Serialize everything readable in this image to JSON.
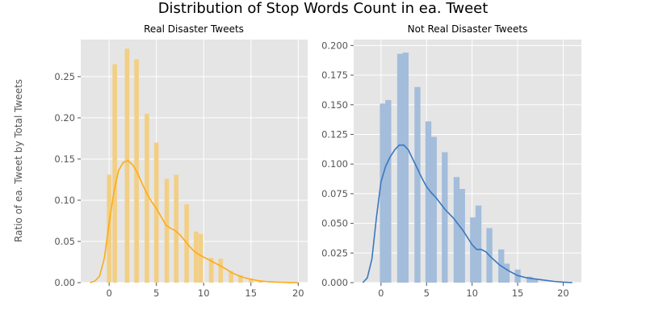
{
  "figure": {
    "suptitle": "Distribution of Stop Words Count in ea. Tweet",
    "shared_ylabel": "Ratio of ea. Tweet by Total Tweets"
  },
  "chart_data": [
    {
      "type": "bar",
      "subtype": "histogram_with_kde",
      "title": "Real Disaster Tweets",
      "xlabel": "",
      "ylabel": "Ratio of ea. Tweet by Total Tweets",
      "xlim": [
        -3,
        21
      ],
      "ylim": [
        0,
        0.295
      ],
      "xticks": [
        0,
        5,
        10,
        15,
        20
      ],
      "yticks": [
        0.0,
        0.05,
        0.1,
        0.15,
        0.2,
        0.25
      ],
      "ytick_labels": [
        "0.00",
        "0.05",
        "0.10",
        "0.15",
        "0.20",
        "0.25"
      ],
      "bar_color": "#f2cf84",
      "line_color": "#ffaa17",
      "background": "#e5e5e5",
      "grid": true,
      "bin_width": 0.48,
      "bars": [
        {
          "x": 0.0,
          "value": 0.131
        },
        {
          "x": 0.6,
          "value": 0.265
        },
        {
          "x": 1.9,
          "value": 0.284
        },
        {
          "x": 2.9,
          "value": 0.271
        },
        {
          "x": 4.0,
          "value": 0.205
        },
        {
          "x": 5.0,
          "value": 0.17
        },
        {
          "x": 6.1,
          "value": 0.126
        },
        {
          "x": 7.1,
          "value": 0.131
        },
        {
          "x": 8.2,
          "value": 0.095
        },
        {
          "x": 9.2,
          "value": 0.062
        },
        {
          "x": 9.7,
          "value": 0.059
        },
        {
          "x": 10.8,
          "value": 0.03
        },
        {
          "x": 11.8,
          "value": 0.029
        },
        {
          "x": 12.9,
          "value": 0.014
        },
        {
          "x": 13.9,
          "value": 0.009
        },
        {
          "x": 15.0,
          "value": 0.005
        },
        {
          "x": 16.0,
          "value": 0.003
        },
        {
          "x": 17.1,
          "value": 0.002
        }
      ],
      "kde": {
        "x": [
          -2.0,
          -1.5,
          -1.0,
          -0.5,
          0.0,
          0.5,
          1.0,
          1.5,
          2.0,
          2.5,
          3.0,
          3.5,
          4.0,
          4.5,
          5.0,
          5.5,
          6.0,
          6.5,
          7.0,
          7.5,
          8.0,
          8.5,
          9.0,
          9.5,
          10.0,
          11.0,
          12.0,
          13.0,
          14.0,
          15.0,
          16.0,
          17.0,
          18.0,
          19.0,
          20.0
        ],
        "y": [
          0.0,
          0.002,
          0.008,
          0.03,
          0.072,
          0.11,
          0.136,
          0.146,
          0.148,
          0.143,
          0.133,
          0.12,
          0.108,
          0.098,
          0.09,
          0.08,
          0.07,
          0.066,
          0.063,
          0.058,
          0.051,
          0.044,
          0.038,
          0.034,
          0.031,
          0.025,
          0.019,
          0.012,
          0.007,
          0.004,
          0.002,
          0.001,
          0.0005,
          0.0002,
          0.0
        ]
      }
    },
    {
      "type": "bar",
      "subtype": "histogram_with_kde",
      "title": "Not Real Disaster Tweets",
      "xlabel": "",
      "ylabel": "",
      "xlim": [
        -3,
        22
      ],
      "ylim": [
        0,
        0.205
      ],
      "xticks": [
        0,
        5,
        10,
        15,
        20
      ],
      "yticks": [
        0.0,
        0.025,
        0.05,
        0.075,
        0.1,
        0.125,
        0.15,
        0.175,
        0.2
      ],
      "ytick_labels": [
        "0.000",
        "0.025",
        "0.050",
        "0.075",
        "0.100",
        "0.125",
        "0.150",
        "0.175",
        "0.200"
      ],
      "bar_color": "#a3bddb",
      "line_color": "#3a77bf",
      "background": "#e5e5e5",
      "grid": true,
      "bin_width": 0.65,
      "bars": [
        {
          "x": 0.2,
          "value": 0.151
        },
        {
          "x": 0.8,
          "value": 0.154
        },
        {
          "x": 2.1,
          "value": 0.193
        },
        {
          "x": 2.7,
          "value": 0.194
        },
        {
          "x": 4.0,
          "value": 0.165
        },
        {
          "x": 5.2,
          "value": 0.136
        },
        {
          "x": 5.8,
          "value": 0.123
        },
        {
          "x": 7.0,
          "value": 0.11
        },
        {
          "x": 8.3,
          "value": 0.089
        },
        {
          "x": 8.9,
          "value": 0.079
        },
        {
          "x": 10.1,
          "value": 0.055
        },
        {
          "x": 10.7,
          "value": 0.065
        },
        {
          "x": 11.9,
          "value": 0.046
        },
        {
          "x": 13.2,
          "value": 0.028
        },
        {
          "x": 13.8,
          "value": 0.016
        },
        {
          "x": 15.0,
          "value": 0.011
        },
        {
          "x": 16.3,
          "value": 0.005
        },
        {
          "x": 16.9,
          "value": 0.003
        }
      ],
      "kde": {
        "x": [
          -2.0,
          -1.5,
          -1.0,
          -0.5,
          0.0,
          0.5,
          1.0,
          1.5,
          2.0,
          2.5,
          3.0,
          3.5,
          4.0,
          4.5,
          5.0,
          5.5,
          6.0,
          6.5,
          7.0,
          7.5,
          8.0,
          8.5,
          9.0,
          9.5,
          10.0,
          10.5,
          11.0,
          11.5,
          12.0,
          13.0,
          14.0,
          15.0,
          16.0,
          17.0,
          18.0,
          19.0,
          20.0,
          21.0
        ],
        "y": [
          0.0,
          0.004,
          0.02,
          0.055,
          0.085,
          0.098,
          0.106,
          0.112,
          0.116,
          0.116,
          0.112,
          0.104,
          0.096,
          0.088,
          0.081,
          0.076,
          0.072,
          0.067,
          0.062,
          0.058,
          0.054,
          0.049,
          0.044,
          0.038,
          0.032,
          0.028,
          0.028,
          0.026,
          0.022,
          0.015,
          0.01,
          0.006,
          0.004,
          0.003,
          0.002,
          0.001,
          0.0004,
          0.0
        ]
      }
    }
  ]
}
